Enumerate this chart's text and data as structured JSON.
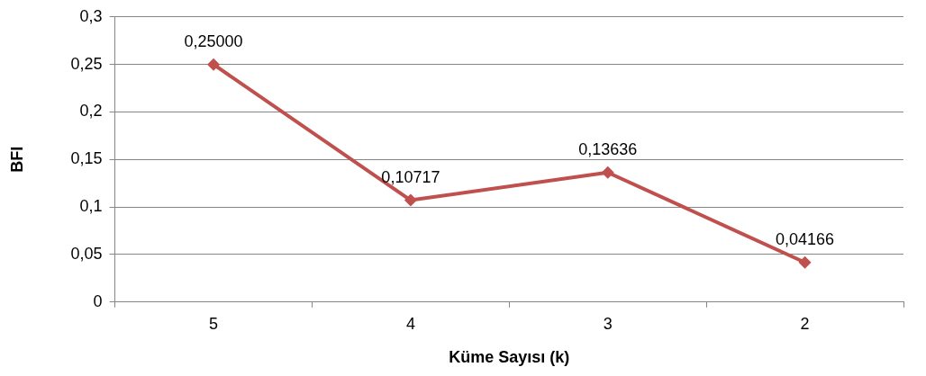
{
  "chart_data": {
    "type": "line",
    "xlabel": "Küme Sayısı (k)",
    "ylabel": "BFI",
    "categories": [
      "5",
      "4",
      "3",
      "2"
    ],
    "series": [
      {
        "color": "#c0504d",
        "values": [
          0.25,
          0.10717,
          0.13636,
          0.04166
        ],
        "value_labels": [
          "0,25000",
          "0,10717",
          "0,13636",
          "0,04166"
        ]
      }
    ],
    "ylim": [
      0,
      0.3
    ],
    "yticks": [
      0,
      {
        "value": 0.05,
        "label": "0,05"
      },
      {
        "value": 0.1,
        "label": "0,1"
      },
      {
        "value": 0.15,
        "label": "0,15"
      },
      {
        "value": 0.2,
        "label": "0,2"
      },
      {
        "value": 0.25,
        "label": "0,25"
      },
      {
        "value": 0.3,
        "label": "0,3"
      }
    ],
    "grid": "y",
    "legend": false,
    "marker": "diamond",
    "line_style": "solid"
  }
}
